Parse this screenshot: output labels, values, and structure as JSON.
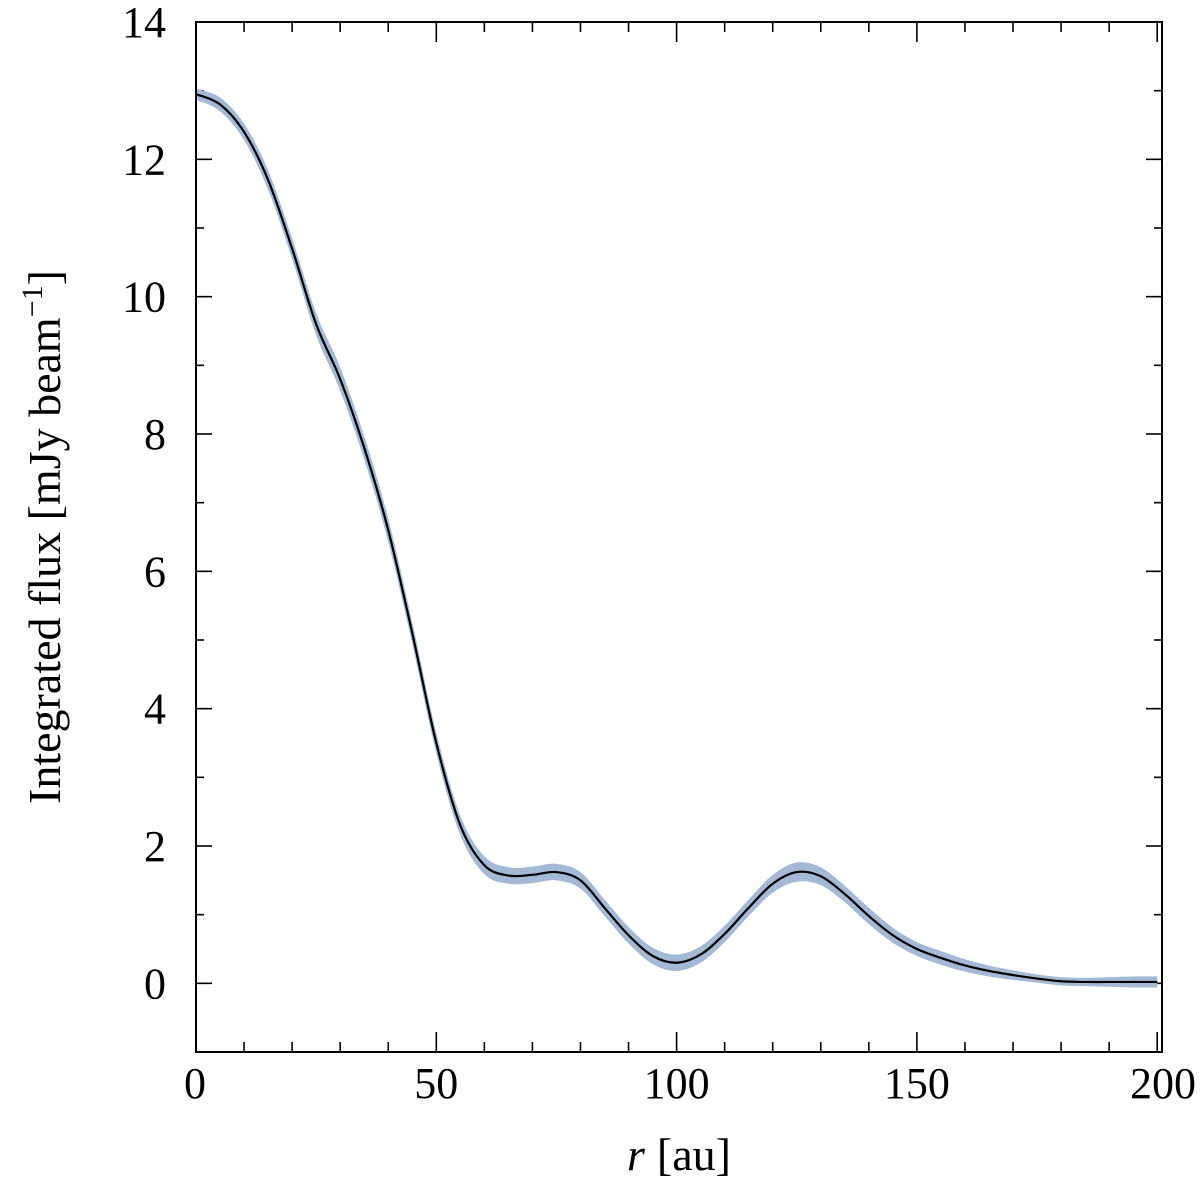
{
  "chart_data": {
    "type": "line",
    "title": "",
    "xlabel_var": "r",
    "xlabel_unit": "[au]",
    "ylabel_main": "Integrated flux [mJy beam",
    "ylabel_sup": "−1",
    "ylabel_close": "]",
    "xlim": [
      0,
      201
    ],
    "ylim": [
      -1,
      14
    ],
    "xticks": [
      0,
      50,
      100,
      150,
      200
    ],
    "xtick_labels": [
      "0",
      "50",
      "100",
      "150",
      "200"
    ],
    "yticks": [
      0,
      2,
      4,
      6,
      8,
      10,
      12,
      14
    ],
    "ytick_labels": [
      "0",
      "2",
      "4",
      "6",
      "8",
      "10",
      "12",
      "14"
    ],
    "x_minor_step": 10,
    "y_minor_step": 1,
    "grid": false,
    "band_color": "#a3b9d6",
    "line_color": "#000000",
    "series": [
      {
        "x": [
          0,
          5,
          10,
          15,
          20,
          25,
          30,
          35,
          40,
          45,
          50,
          55,
          60,
          65,
          70,
          75,
          80,
          85,
          90,
          95,
          100,
          105,
          110,
          115,
          120,
          125,
          130,
          135,
          140,
          145,
          150,
          155,
          160,
          165,
          170,
          175,
          180,
          185,
          190,
          195,
          200
        ],
        "y": [
          12.95,
          12.8,
          12.4,
          11.7,
          10.7,
          9.6,
          8.8,
          7.8,
          6.6,
          5.1,
          3.5,
          2.3,
          1.72,
          1.57,
          1.58,
          1.62,
          1.5,
          1.1,
          0.7,
          0.4,
          0.3,
          0.42,
          0.72,
          1.1,
          1.45,
          1.62,
          1.56,
          1.3,
          0.98,
          0.7,
          0.5,
          0.37,
          0.26,
          0.18,
          0.12,
          0.07,
          0.03,
          0.02,
          0.02,
          0.02,
          0.02
        ],
        "error": [
          0.08,
          0.1,
          0.12,
          0.14,
          0.15,
          0.16,
          0.17,
          0.17,
          0.17,
          0.16,
          0.15,
          0.14,
          0.13,
          0.12,
          0.12,
          0.12,
          0.12,
          0.12,
          0.12,
          0.12,
          0.12,
          0.12,
          0.12,
          0.12,
          0.13,
          0.14,
          0.13,
          0.12,
          0.12,
          0.11,
          0.1,
          0.1,
          0.09,
          0.08,
          0.07,
          0.06,
          0.06,
          0.06,
          0.07,
          0.08,
          0.08
        ]
      }
    ]
  }
}
